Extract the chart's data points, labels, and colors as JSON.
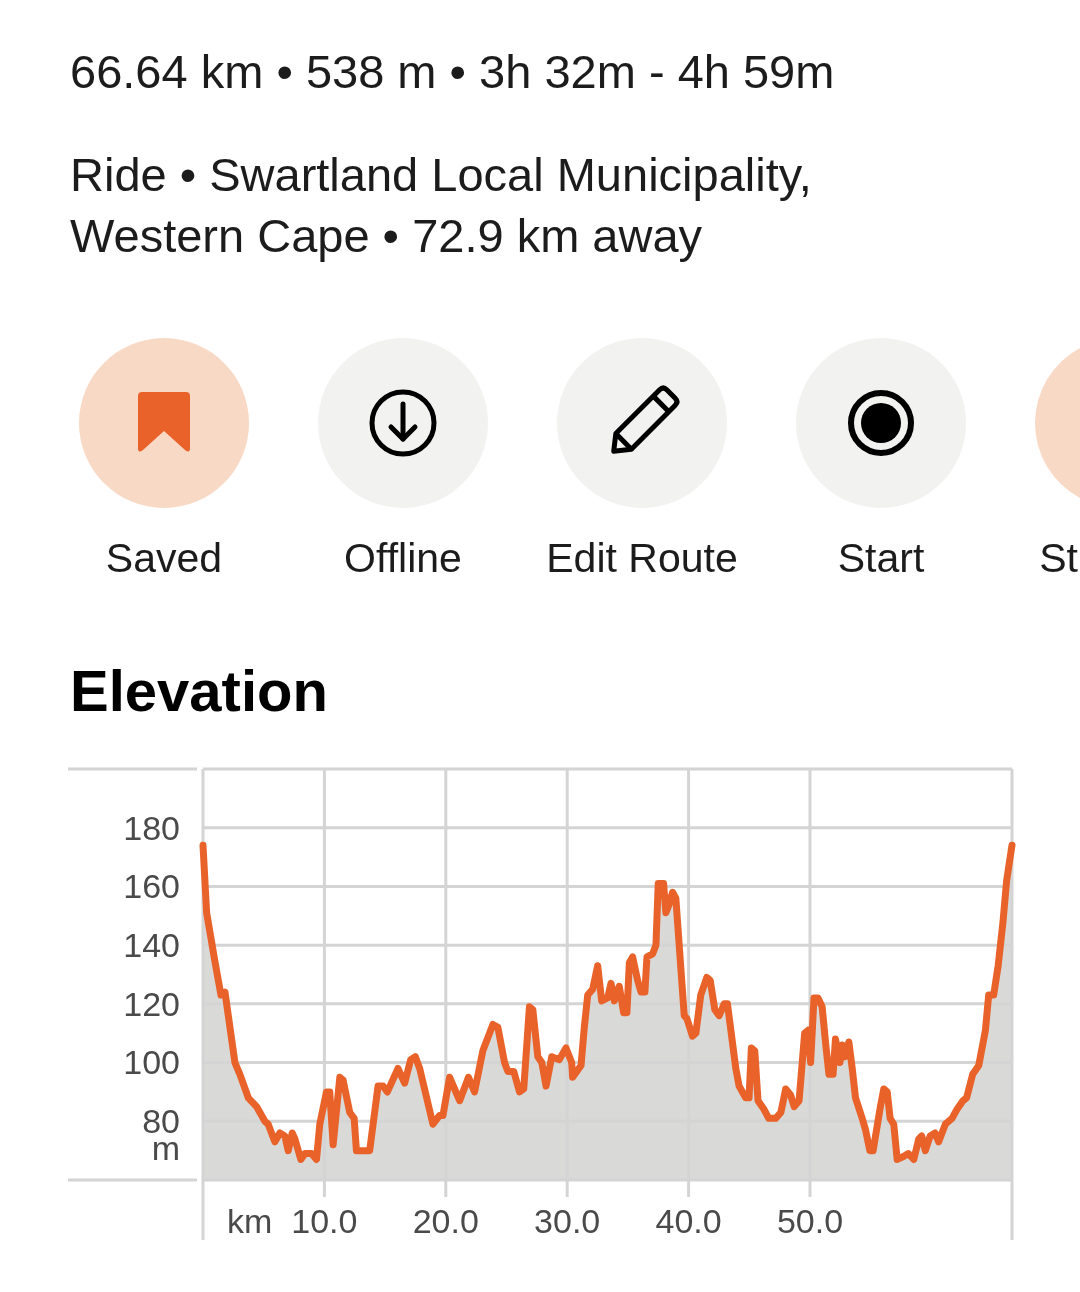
{
  "chart_data": {
    "type": "area",
    "title": "Elevation",
    "xlabel": "km",
    "ylabel": "m",
    "annotations": [
      "66.64 km • 538 m • 3h 32m - 4h 59m",
      "Ride • Swartland Local Municipality, Western Cape • 72.9 km away",
      "Saved",
      "Offline",
      "Edit Route",
      "Start",
      "St"
    ],
    "x": [
      0,
      0.3,
      1.0,
      1.48,
      1.81,
      2.63,
      3.04,
      3.73,
      4.41,
      5.1,
      5.37,
      5.92,
      6.33,
      6.74,
      7.02,
      7.35,
      7.57,
      8.06,
      8.39,
      8.94,
      9.35,
      9.62,
      10.17,
      10.44,
      10.72,
      11.27,
      11.54,
      12.09,
      12.45,
      12.64,
      13.05,
      13.73,
      14.42,
      14.83,
      15.19,
      16.06,
      16.61,
      17.11,
      17.49,
      17.85,
      18.94,
      19.49,
      19.77,
      20.31,
      21.14,
      21.87,
      22.37,
      23.05,
      23.88,
      24.29,
      24.84,
      25.11,
      25.6,
      26.07,
      26.42,
      26.89,
      27.17,
      27.58,
      27.91,
      28.26,
      28.73,
      29.35,
      29.9,
      30.37,
      30.45,
      31.14,
      31.41,
      31.69,
      32.1,
      32.51,
      32.84,
      33.33,
      33.61,
      33.88,
      34.29,
      34.65,
      34.92,
      35.12,
      35.39,
      35.8,
      36.08,
      36.4,
      36.57,
      37.03,
      37.31,
      37.5,
      37.94,
      38.13,
      38.41,
      38.68,
      38.95,
      39.64,
      39.86,
      40.32,
      40.6,
      41.0,
      41.5,
      41.78,
      42.16,
      42.52,
      42.93,
      43.2,
      43.89,
      44.16,
      44.7,
      44.98,
      45.17,
      45.45,
      45.72,
      46.22,
      46.6,
      47.17,
      47.6,
      48.0,
      48.4,
      48.7,
      49.1,
      49.56,
      49.84,
      50.05,
      50.33,
      50.66,
      51.0,
      51.3,
      51.56,
      51.9,
      52.1,
      52.47,
      52.66,
      52.9,
      53.2,
      53.48,
      53.75,
      54.3,
      54.58,
      54.93,
      55.2,
      55.8,
      56.08,
      56.36,
      56.6,
      56.9,
      57.18,
      57.7,
      58.1,
      58.55,
      58.96,
      59.2,
      59.5,
      59.9,
      60.3,
      60.6,
      61.15,
      61.7,
      62.1,
      62.6,
      62.9,
      63.4,
      63.9,
      64.45,
      64.72,
      65.13,
      65.5,
      65.9,
      66.2,
      66.64
    ],
    "values": [
      174,
      151,
      134,
      123,
      124,
      100,
      96,
      88,
      85,
      80,
      79,
      73,
      76,
      75,
      70,
      76,
      74,
      67,
      69,
      69,
      67,
      79,
      90,
      90,
      72,
      95,
      94,
      83,
      81,
      70,
      70,
      70,
      92,
      92,
      90,
      98,
      93,
      101,
      102,
      98,
      79,
      82,
      82,
      95,
      87,
      95,
      90,
      104,
      113,
      112,
      100,
      97,
      97,
      90,
      91,
      119,
      118,
      102,
      100,
      92,
      102,
      101,
      105,
      100,
      95,
      99,
      112,
      123,
      125,
      133,
      121,
      122,
      127,
      121,
      126,
      117,
      117,
      134,
      136,
      128,
      124,
      124,
      136,
      137,
      140,
      161,
      161,
      151,
      154,
      158,
      156,
      116,
      115,
      109,
      110,
      123,
      129,
      128,
      118,
      116,
      120,
      120,
      98,
      92,
      88,
      88,
      105,
      104,
      87,
      84,
      81,
      81,
      83,
      91,
      89,
      85,
      87,
      110,
      111,
      100,
      122,
      122,
      119,
      106,
      96,
      96,
      108,
      100,
      106,
      102,
      107,
      98,
      88,
      81,
      77,
      70,
      70,
      85,
      91,
      90,
      81,
      79,
      67,
      68,
      69,
      67,
      74,
      75,
      70,
      75,
      76,
      73,
      79,
      81,
      84,
      87,
      88,
      96,
      99,
      111,
      123,
      123,
      133,
      148,
      162,
      174
    ],
    "color": "#e8622a",
    "xlim": [
      0,
      66.64
    ],
    "xticks": [
      {
        "value": 0,
        "label": null
      },
      {
        "value": 10,
        "label": "10.0"
      },
      {
        "value": 20,
        "label": "20.0"
      },
      {
        "value": 30,
        "label": "30.0"
      },
      {
        "value": 40,
        "label": "40.0"
      },
      {
        "value": 50,
        "label": "50.0"
      }
    ],
    "ylim": [
      60,
      200
    ],
    "yticks": [
      80,
      100,
      120,
      140,
      160,
      180
    ],
    "grid": true
  }
}
